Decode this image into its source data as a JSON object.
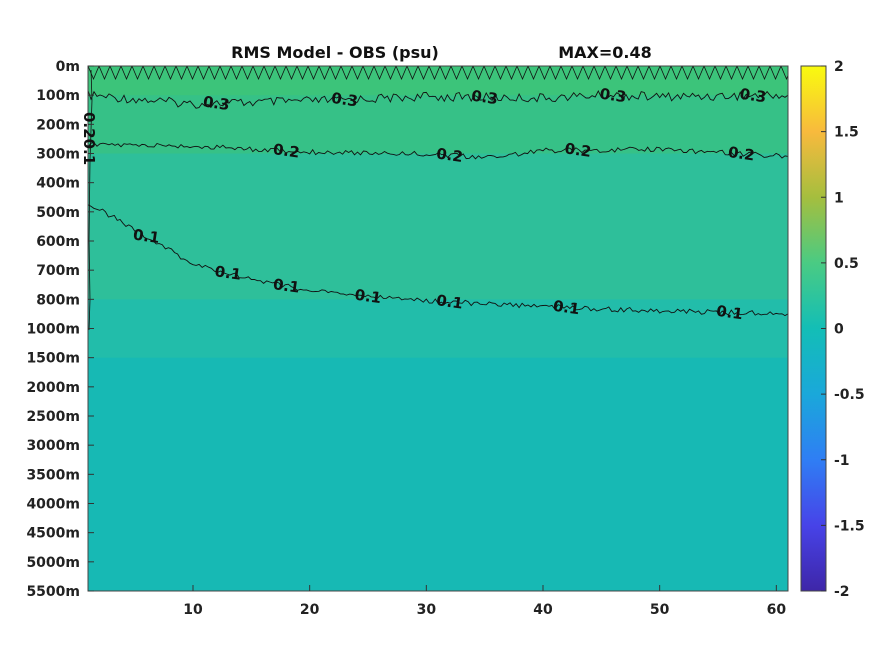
{
  "chart_data": {
    "type": "heatmap",
    "title": "RMS Model - OBS (psu)",
    "annotation": "MAX=0.48",
    "xlabel": "",
    "ylabel": "",
    "xlim": [
      1,
      61
    ],
    "x_ticks": [
      10,
      20,
      30,
      40,
      50,
      60
    ],
    "y_ticks": [
      "0m",
      "100m",
      "200m",
      "300m",
      "400m",
      "500m",
      "600m",
      "700m",
      "800m",
      "1000m",
      "1500m",
      "2000m",
      "2500m",
      "3000m",
      "3500m",
      "4000m",
      "4500m",
      "5000m",
      "5500m"
    ],
    "y_axis_reversed": true,
    "colorbar": {
      "range": [
        -2,
        2
      ],
      "ticks": [
        "2",
        "1.5",
        "1",
        "0.5",
        "0",
        "-0.5",
        "-1",
        "-1.5",
        "-2"
      ],
      "colormap": "parula"
    },
    "field_bands": [
      {
        "depth_from": "0m",
        "depth_to": "100m",
        "value": 0.35,
        "color": "#3cc47a"
      },
      {
        "depth_from": "100m",
        "depth_to": "300m",
        "value": 0.25,
        "color": "#36c187"
      },
      {
        "depth_from": "300m",
        "depth_to": "800m",
        "value": 0.15,
        "color": "#2ebf9a"
      },
      {
        "depth_from": "800m",
        "depth_to": "1500m",
        "value": 0.08,
        "color": "#22bdaa"
      },
      {
        "depth_from": "1500m",
        "depth_to": "5500m",
        "value": 0.03,
        "color": "#17b9b4"
      }
    ],
    "contours": [
      {
        "level": 0.3,
        "label": "0.3",
        "points": [
          [
            1,
            "100m"
          ],
          [
            10,
            "130m"
          ],
          [
            20,
            "120m"
          ],
          [
            30,
            "105m"
          ],
          [
            40,
            "110m"
          ],
          [
            45,
            "100m"
          ],
          [
            50,
            "105m"
          ],
          [
            61,
            "100m"
          ]
        ],
        "label_x": [
          12,
          23,
          35,
          46,
          58
        ]
      },
      {
        "level": 0.2,
        "label": "0.2",
        "points": [
          [
            1,
            "270m"
          ],
          [
            10,
            "275m"
          ],
          [
            20,
            "295m"
          ],
          [
            30,
            "300m"
          ],
          [
            35,
            "315m"
          ],
          [
            40,
            "290m"
          ],
          [
            50,
            "285m"
          ],
          [
            61,
            "310m"
          ]
        ],
        "label_x": [
          18,
          32,
          43,
          57
        ]
      },
      {
        "level": 0.1,
        "label": "0.1",
        "points": [
          [
            1,
            "470m"
          ],
          [
            5,
            "560m"
          ],
          [
            10,
            "680m"
          ],
          [
            15,
            "730m"
          ],
          [
            20,
            "770m"
          ],
          [
            25,
            "790m"
          ],
          [
            30,
            "810m"
          ],
          [
            40,
            "850m"
          ],
          [
            50,
            "880m"
          ],
          [
            61,
            "900m"
          ]
        ],
        "label_x": [
          6,
          13,
          18,
          25,
          32,
          42,
          56
        ]
      }
    ],
    "edge_label": "0.20.1"
  }
}
